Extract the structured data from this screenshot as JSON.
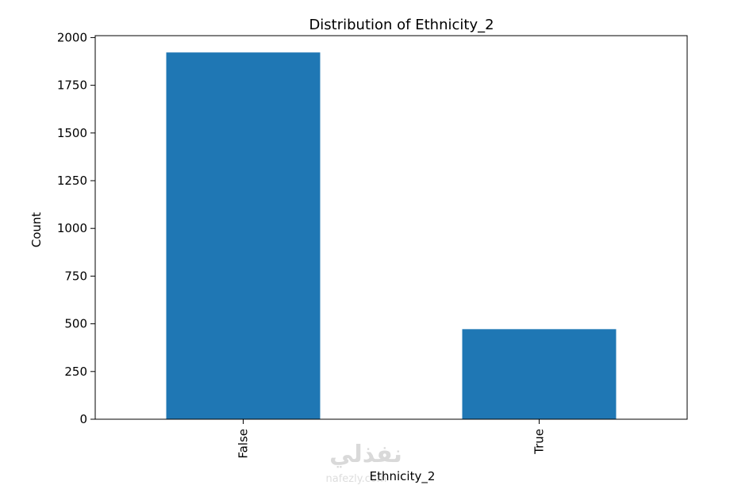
{
  "chart_data": {
    "type": "bar",
    "title": "Distribution of Ethnicity_2",
    "xlabel": "Ethnicity_2",
    "ylabel": "Count",
    "categories": [
      "False",
      "True"
    ],
    "values": [
      1922,
      472
    ],
    "ylim": [
      0,
      2010
    ],
    "yticks": [
      0,
      250,
      500,
      750,
      1000,
      1250,
      1500,
      1750,
      2000
    ],
    "ytick_labels": [
      "0",
      "250",
      "500",
      "750",
      "1000",
      "1250",
      "1500",
      "1750",
      "2000"
    ],
    "grid": false,
    "legend": "none",
    "bar_color": "#1f77b4"
  },
  "watermark": {
    "arabic": "نفذلي",
    "latin": "nafezly.com"
  }
}
